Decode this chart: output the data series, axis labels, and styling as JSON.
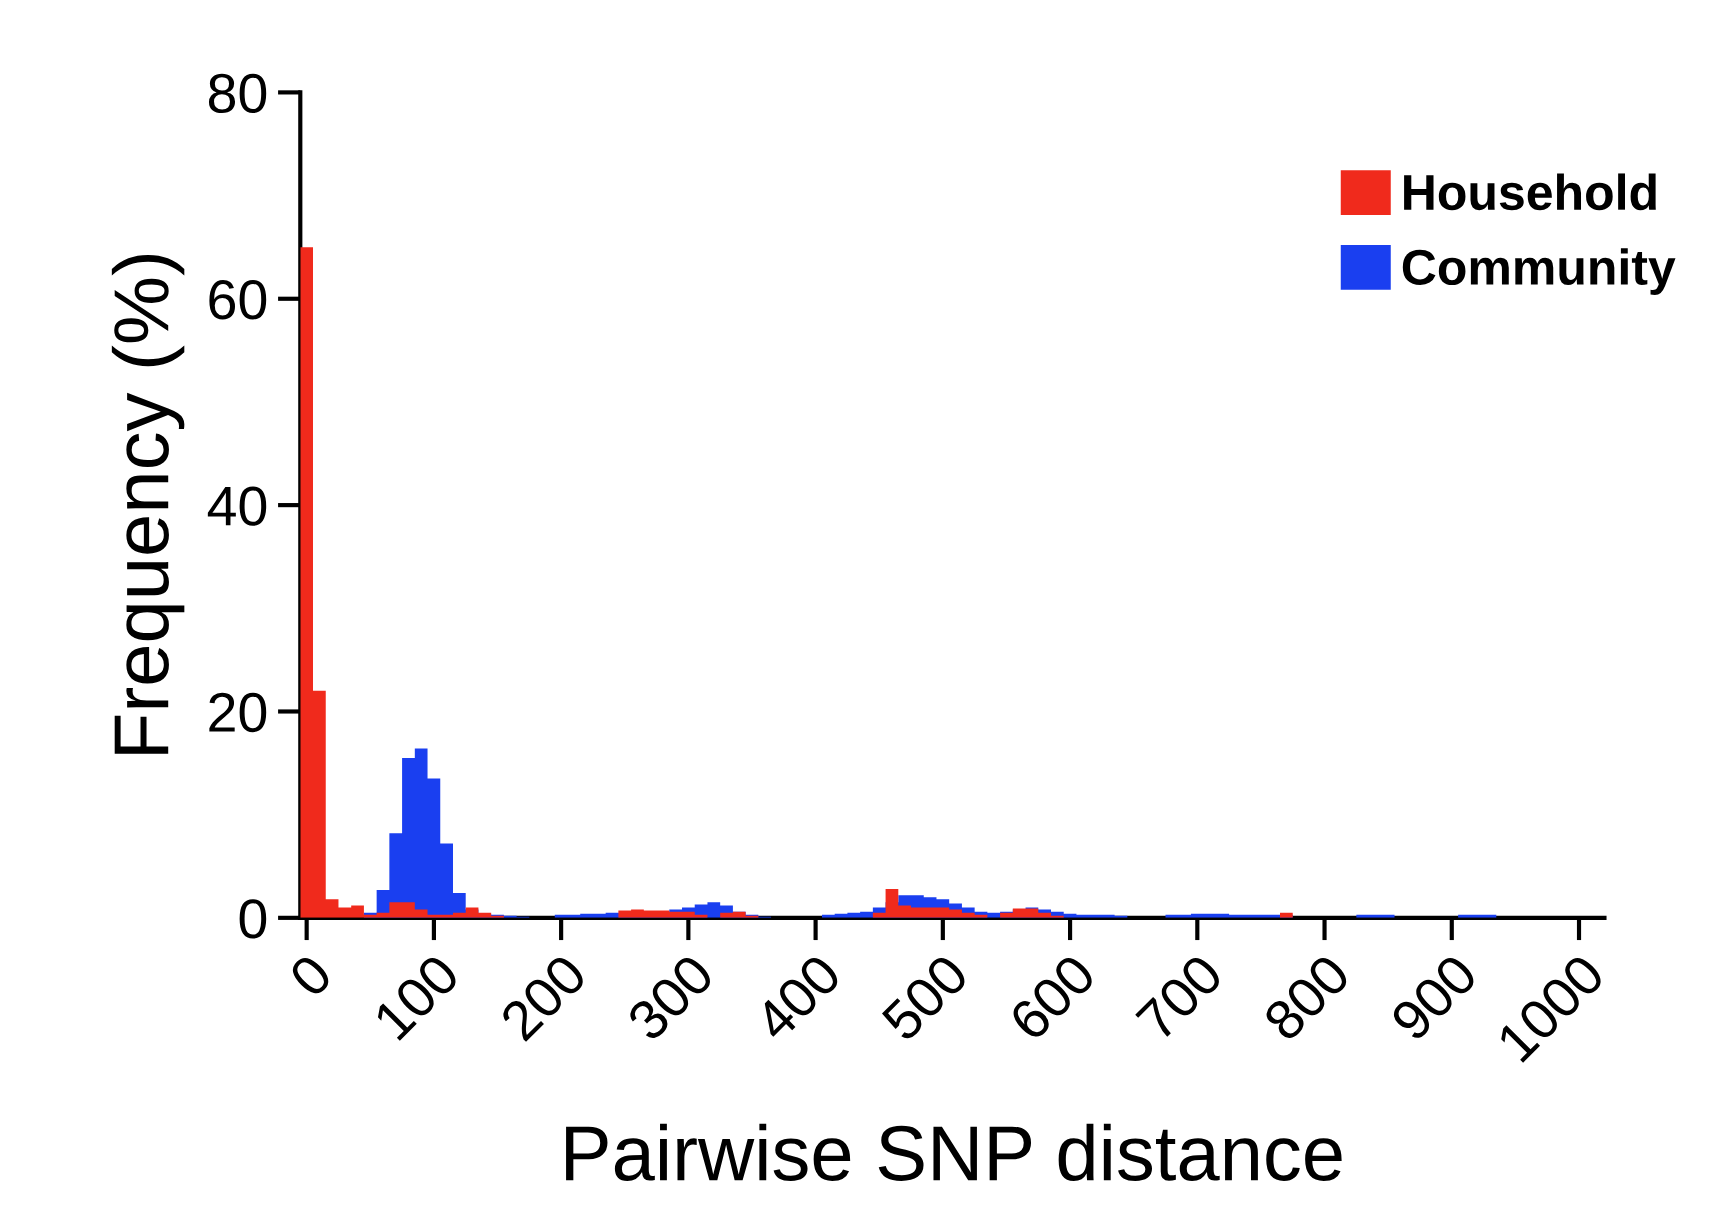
{
  "chart_data": {
    "type": "histogram",
    "xlabel": "Pairwise SNP distance",
    "ylabel": "Frequency (%)",
    "bins": [
      -5,
      5,
      15,
      25,
      35,
      45,
      55,
      65,
      75,
      85,
      95,
      105,
      115,
      125,
      135,
      145,
      155,
      165,
      175,
      185,
      195,
      205,
      215,
      225,
      235,
      245,
      255,
      265,
      275,
      285,
      295,
      305,
      315,
      325,
      335,
      345,
      355,
      365,
      375,
      385,
      395,
      405,
      415,
      425,
      435,
      445,
      455,
      465,
      475,
      485,
      495,
      505,
      515,
      525,
      535,
      545,
      555,
      565,
      575,
      585,
      595,
      605,
      615,
      625,
      635,
      645,
      655,
      665,
      675,
      685,
      695,
      705,
      715,
      725,
      735,
      745,
      755,
      765,
      775,
      785,
      795,
      805,
      815,
      825,
      835,
      845,
      855,
      865,
      875,
      885,
      895,
      905,
      915,
      925,
      935,
      945,
      955,
      965,
      975,
      985,
      995
    ],
    "series": [
      {
        "name": "Household",
        "color": "#f02a1c",
        "values": [
          65,
          22,
          1.8,
          1.0,
          1.2,
          0.3,
          0.5,
          1.5,
          1.5,
          0.8,
          0.3,
          0.3,
          0.5,
          1.0,
          0.5,
          0.2,
          0,
          0,
          0,
          0,
          0,
          0,
          0,
          0,
          0,
          0.7,
          0.8,
          0.7,
          0.7,
          0.6,
          0.6,
          0.3,
          0,
          0.5,
          0.6,
          0.2,
          0,
          0,
          0,
          0,
          0,
          0,
          0,
          0,
          0,
          0.5,
          2.8,
          1.2,
          1.0,
          1.0,
          1.0,
          0.8,
          0.5,
          0.3,
          0,
          0.5,
          0.9,
          0.9,
          0.5,
          0.2,
          0,
          0,
          0,
          0,
          0,
          0,
          0,
          0,
          0,
          0,
          0,
          0,
          0,
          0,
          0,
          0,
          0,
          0.5,
          0,
          0,
          0,
          0,
          0,
          0,
          0,
          0,
          0,
          0,
          0,
          0,
          0,
          0,
          0,
          0,
          0,
          0,
          0,
          0,
          0,
          0
        ]
      },
      {
        "name": "Community",
        "color": "#1a3ff0",
        "values": [
          0,
          0,
          0,
          0,
          0,
          0.5,
          2.7,
          8.2,
          15.5,
          16.4,
          13.5,
          7.2,
          2.4,
          0.8,
          0.4,
          0.3,
          0.2,
          0.1,
          0,
          0,
          0.3,
          0.3,
          0.4,
          0.4,
          0.5,
          0.5,
          0.5,
          0.5,
          0.6,
          0.8,
          1.0,
          1.3,
          1.5,
          1.2,
          0.6,
          0.3,
          0.1,
          0,
          0,
          0,
          0,
          0.3,
          0.4,
          0.5,
          0.6,
          1.0,
          1.5,
          2.2,
          2.2,
          2.0,
          1.8,
          1.4,
          1.0,
          0.6,
          0.5,
          0.6,
          0.8,
          1.0,
          0.8,
          0.6,
          0.4,
          0.3,
          0.3,
          0.3,
          0.2,
          0,
          0,
          0,
          0.3,
          0.3,
          0.4,
          0.4,
          0.4,
          0.3,
          0.3,
          0.3,
          0.3,
          0.3,
          0,
          0,
          0,
          0,
          0,
          0.3,
          0.3,
          0.3,
          0,
          0,
          0,
          0,
          0,
          0.3,
          0.3,
          0.3,
          0,
          0,
          0,
          0,
          0,
          0
        ]
      }
    ],
    "xlim": [
      -5,
      1020
    ],
    "xticks": [
      0,
      100,
      200,
      300,
      400,
      500,
      600,
      700,
      800,
      900,
      1000
    ],
    "ylim": [
      0,
      80
    ],
    "yticks": [
      0,
      20,
      40,
      60,
      80
    ],
    "grid": false,
    "legend": "top right"
  }
}
